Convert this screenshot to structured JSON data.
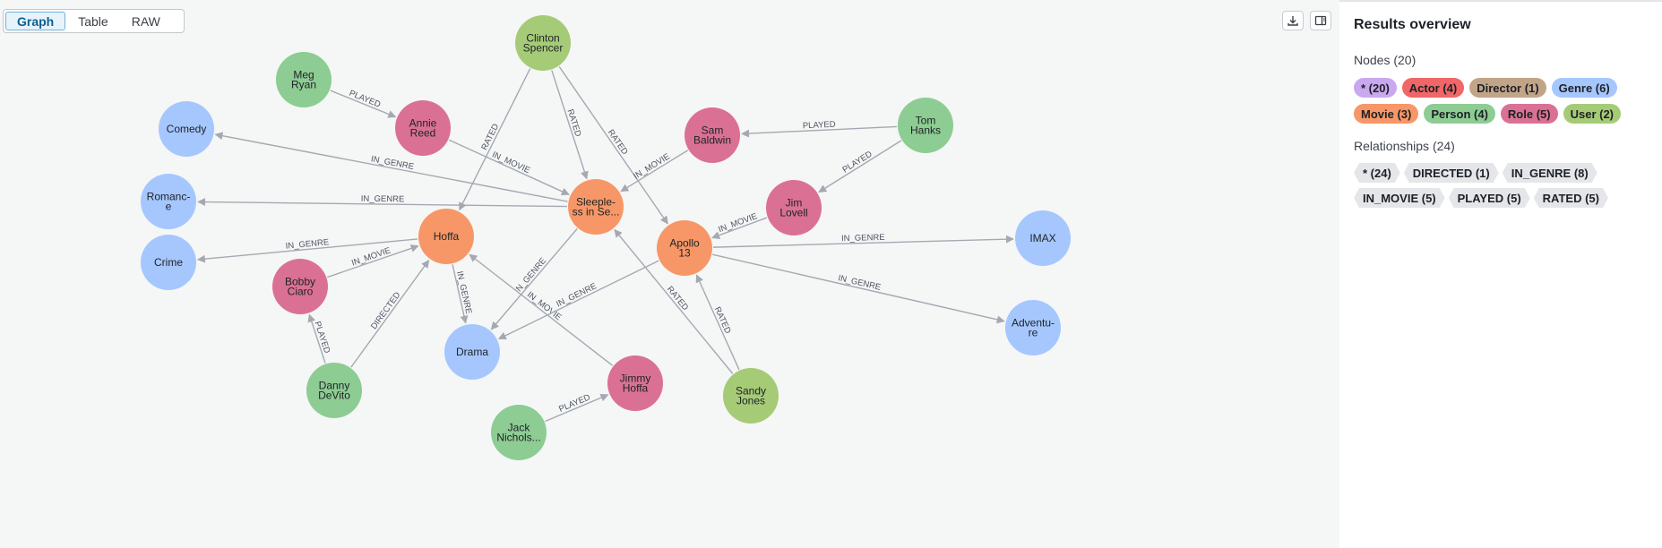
{
  "tabs": {
    "graph": "Graph",
    "table": "Table",
    "raw": "RAW"
  },
  "icons": {
    "download": "download-icon",
    "panel_toggle": "side-panel-icon"
  },
  "colors": {
    "Movie": "#f79767",
    "Person": "#8dcc93",
    "Genre": "#a5c7fe",
    "Role": "#da7194",
    "User": "#a6cb77",
    "edge": "#a4a9b1",
    "all": "#c9a8f0",
    "Actor": "#f16667",
    "Director": "#c2a489"
  },
  "graph": {
    "nodes": [
      {
        "id": "clinton",
        "label": [
          "Clinton",
          "Spencer"
        ],
        "type": "User"
      },
      {
        "id": "meg",
        "label": [
          "Meg",
          "Ryan"
        ],
        "type": "Person"
      },
      {
        "id": "annie",
        "label": [
          "Annie",
          "Reed"
        ],
        "type": "Role"
      },
      {
        "id": "comedy",
        "label": [
          "Comedy"
        ],
        "type": "Genre"
      },
      {
        "id": "sam",
        "label": [
          "Sam",
          "Baldwin"
        ],
        "type": "Role"
      },
      {
        "id": "tom",
        "label": [
          "Tom",
          "Hanks"
        ],
        "type": "Person"
      },
      {
        "id": "romance",
        "label": [
          "Romanc-",
          "e"
        ],
        "type": "Genre"
      },
      {
        "id": "sleepless",
        "label": [
          "Sleeple-",
          "ss in Se..."
        ],
        "type": "Movie"
      },
      {
        "id": "jim",
        "label": [
          "Jim",
          "Lovell"
        ],
        "type": "Role"
      },
      {
        "id": "crime",
        "label": [
          "Crime"
        ],
        "type": "Genre"
      },
      {
        "id": "hoffa",
        "label": [
          "Hoffa"
        ],
        "type": "Movie"
      },
      {
        "id": "apollo",
        "label": [
          "Apollo",
          "13"
        ],
        "type": "Movie"
      },
      {
        "id": "imax",
        "label": [
          "IMAX"
        ],
        "type": "Genre"
      },
      {
        "id": "bobby",
        "label": [
          "Bobby",
          "Ciaro"
        ],
        "type": "Role"
      },
      {
        "id": "adventure",
        "label": [
          "Adventu-",
          "re"
        ],
        "type": "Genre"
      },
      {
        "id": "drama",
        "label": [
          "Drama"
        ],
        "type": "Genre"
      },
      {
        "id": "danny",
        "label": [
          "Danny",
          "DeVito"
        ],
        "type": "Person"
      },
      {
        "id": "jimmy",
        "label": [
          "Jimmy",
          "Hoffa"
        ],
        "type": "Role"
      },
      {
        "id": "sandy",
        "label": [
          "Sandy",
          "Jones"
        ],
        "type": "User"
      },
      {
        "id": "jack",
        "label": [
          "Jack",
          "Nichols..."
        ],
        "type": "Person"
      }
    ],
    "edges": [
      {
        "from": "meg",
        "to": "annie",
        "label": "PLAYED"
      },
      {
        "from": "annie",
        "to": "sleepless",
        "label": "IN_MOVIE"
      },
      {
        "from": "clinton",
        "to": "hoffa",
        "label": "RATED"
      },
      {
        "from": "clinton",
        "to": "sleepless",
        "label": "RATED"
      },
      {
        "from": "clinton",
        "to": "apollo",
        "label": "RATED"
      },
      {
        "from": "sleepless",
        "to": "comedy",
        "label": "IN_GENRE"
      },
      {
        "from": "sleepless",
        "to": "romance",
        "label": "IN_GENRE"
      },
      {
        "from": "sleepless",
        "to": "drama",
        "label": "IN_GENRE"
      },
      {
        "from": "tom",
        "to": "sam",
        "label": "PLAYED"
      },
      {
        "from": "sam",
        "to": "sleepless",
        "label": "IN_MOVIE"
      },
      {
        "from": "tom",
        "to": "jim",
        "label": "PLAYED"
      },
      {
        "from": "jim",
        "to": "apollo",
        "label": "IN_MOVIE"
      },
      {
        "from": "hoffa",
        "to": "crime",
        "label": "IN_GENRE"
      },
      {
        "from": "hoffa",
        "to": "drama",
        "label": "IN_GENRE"
      },
      {
        "from": "bobby",
        "to": "hoffa",
        "label": "IN_MOVIE"
      },
      {
        "from": "danny",
        "to": "bobby",
        "label": "PLAYED"
      },
      {
        "from": "danny",
        "to": "hoffa",
        "label": "DIRECTED"
      },
      {
        "from": "jimmy",
        "to": "hoffa",
        "label": "IN_MOVIE"
      },
      {
        "from": "jack",
        "to": "jimmy",
        "label": "PLAYED"
      },
      {
        "from": "apollo",
        "to": "imax",
        "label": "IN_GENRE"
      },
      {
        "from": "apollo",
        "to": "adventure",
        "label": "IN_GENRE"
      },
      {
        "from": "apollo",
        "to": "drama",
        "label": "IN_GENRE"
      },
      {
        "from": "sandy",
        "to": "sleepless",
        "label": "RATED"
      },
      {
        "from": "sandy",
        "to": "apollo",
        "label": "RATED"
      }
    ]
  },
  "results": {
    "title": "Results overview",
    "nodes_heading": "Nodes (20)",
    "node_chips": [
      {
        "label": "* (20)",
        "color": "#c9a8f0"
      },
      {
        "label": "Actor (4)",
        "color": "#f16667"
      },
      {
        "label": "Director (1)",
        "color": "#c2a489"
      },
      {
        "label": "Genre (6)",
        "color": "#a5c7fe"
      },
      {
        "label": "Movie (3)",
        "color": "#f79767"
      },
      {
        "label": "Person (4)",
        "color": "#8dcc93"
      },
      {
        "label": "Role (5)",
        "color": "#da7194"
      },
      {
        "label": "User (2)",
        "color": "#a6cb77"
      }
    ],
    "relationships_heading": "Relationships (24)",
    "rel_chips": [
      {
        "label": "* (24)"
      },
      {
        "label": "DIRECTED (1)"
      },
      {
        "label": "IN_GENRE (8)"
      },
      {
        "label": "IN_MOVIE (5)"
      },
      {
        "label": "PLAYED (5)"
      },
      {
        "label": "RATED (5)"
      }
    ]
  }
}
